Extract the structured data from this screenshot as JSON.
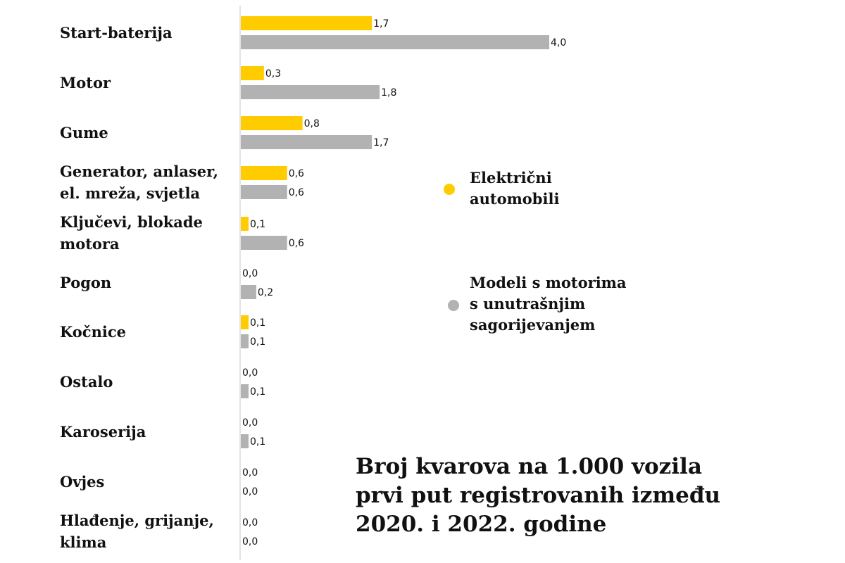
{
  "chart_data": {
    "type": "bar",
    "orientation": "horizontal",
    "title": "Broj kvarova na 1.000 vozila\nprvi put registrovanih između\n2020. i 2022. godine",
    "categories": [
      "Start-baterija",
      "Motor",
      "Gume",
      "Generator, anlaser,\nel. mreža, svjetla",
      "Ključevi, blokade\nmotora",
      "Pogon",
      "Kočnice",
      "Ostalo",
      "Karoserija",
      "Ovjes",
      "Hlađenje, grijanje,\nklima"
    ],
    "series": [
      {
        "name": "Električni\nautomobili",
        "color": "#FFCC00",
        "values": [
          1.7,
          0.3,
          0.8,
          0.6,
          0.1,
          0.0,
          0.1,
          0.0,
          0.0,
          0.0,
          0.0
        ],
        "labels": [
          "1,7",
          "0,3",
          "0,8",
          "0,6",
          "0,1",
          "0,0",
          "0,1",
          "0,0",
          "0,0",
          "0,0",
          "0,0"
        ]
      },
      {
        "name": "Modeli s motorima\ns unutrašnjim\nsagorijevanjem",
        "color": "#B2B2B2",
        "values": [
          4.0,
          1.8,
          1.7,
          0.6,
          0.6,
          0.2,
          0.1,
          0.1,
          0.1,
          0.0,
          0.0
        ],
        "labels": [
          "4,0",
          "1,8",
          "1,7",
          "0,6",
          "0,6",
          "0,2",
          "0,1",
          "0,1",
          "0,1",
          "0,0",
          "0,0"
        ]
      }
    ],
    "xlim": [
      0,
      4.0
    ],
    "grid": false,
    "legend_position": "right"
  }
}
